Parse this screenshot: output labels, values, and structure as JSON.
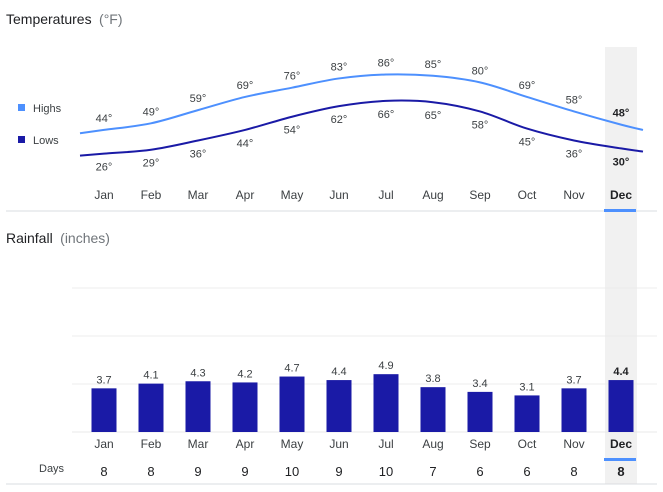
{
  "chart_data": [
    {
      "type": "line",
      "title": "Temperatures",
      "unit": "(°F)",
      "categories": [
        "Jan",
        "Feb",
        "Mar",
        "Apr",
        "May",
        "Jun",
        "Jul",
        "Aug",
        "Sep",
        "Oct",
        "Nov",
        "Dec"
      ],
      "series": [
        {
          "name": "Highs",
          "color": "#4d90fe",
          "values": [
            44,
            49,
            59,
            69,
            76,
            83,
            86,
            85,
            80,
            69,
            58,
            48
          ]
        },
        {
          "name": "Lows",
          "color": "#1a1aa6",
          "values": [
            26,
            29,
            36,
            44,
            54,
            62,
            66,
            65,
            58,
            45,
            36,
            30
          ]
        }
      ],
      "value_suffix": "°",
      "selected": "Dec",
      "legend": "left"
    },
    {
      "type": "bar",
      "title": "Rainfall",
      "unit": "(inches)",
      "categories": [
        "Jan",
        "Feb",
        "Mar",
        "Apr",
        "May",
        "Jun",
        "Jul",
        "Aug",
        "Sep",
        "Oct",
        "Nov",
        "Dec"
      ],
      "values": [
        3.7,
        4.1,
        4.3,
        4.2,
        4.7,
        4.4,
        4.9,
        3.8,
        3.4,
        3.1,
        3.7,
        4.4
      ],
      "labels": [
        "3.7",
        "4.1",
        "4.3",
        "4.2",
        "4.7",
        "4.4",
        "4.9",
        "3.8",
        "3.4",
        "3.1",
        "3.7",
        "4.4"
      ],
      "color": "#1a1aa6",
      "selected": "Dec",
      "grid": true
    }
  ],
  "days": {
    "label": "Days",
    "values": [
      8,
      8,
      9,
      9,
      10,
      9,
      10,
      7,
      6,
      6,
      8,
      8
    ]
  },
  "colors": {
    "highlight": "#f1f1f1",
    "accent": "#4d90fe",
    "divider": "#dadce0"
  }
}
